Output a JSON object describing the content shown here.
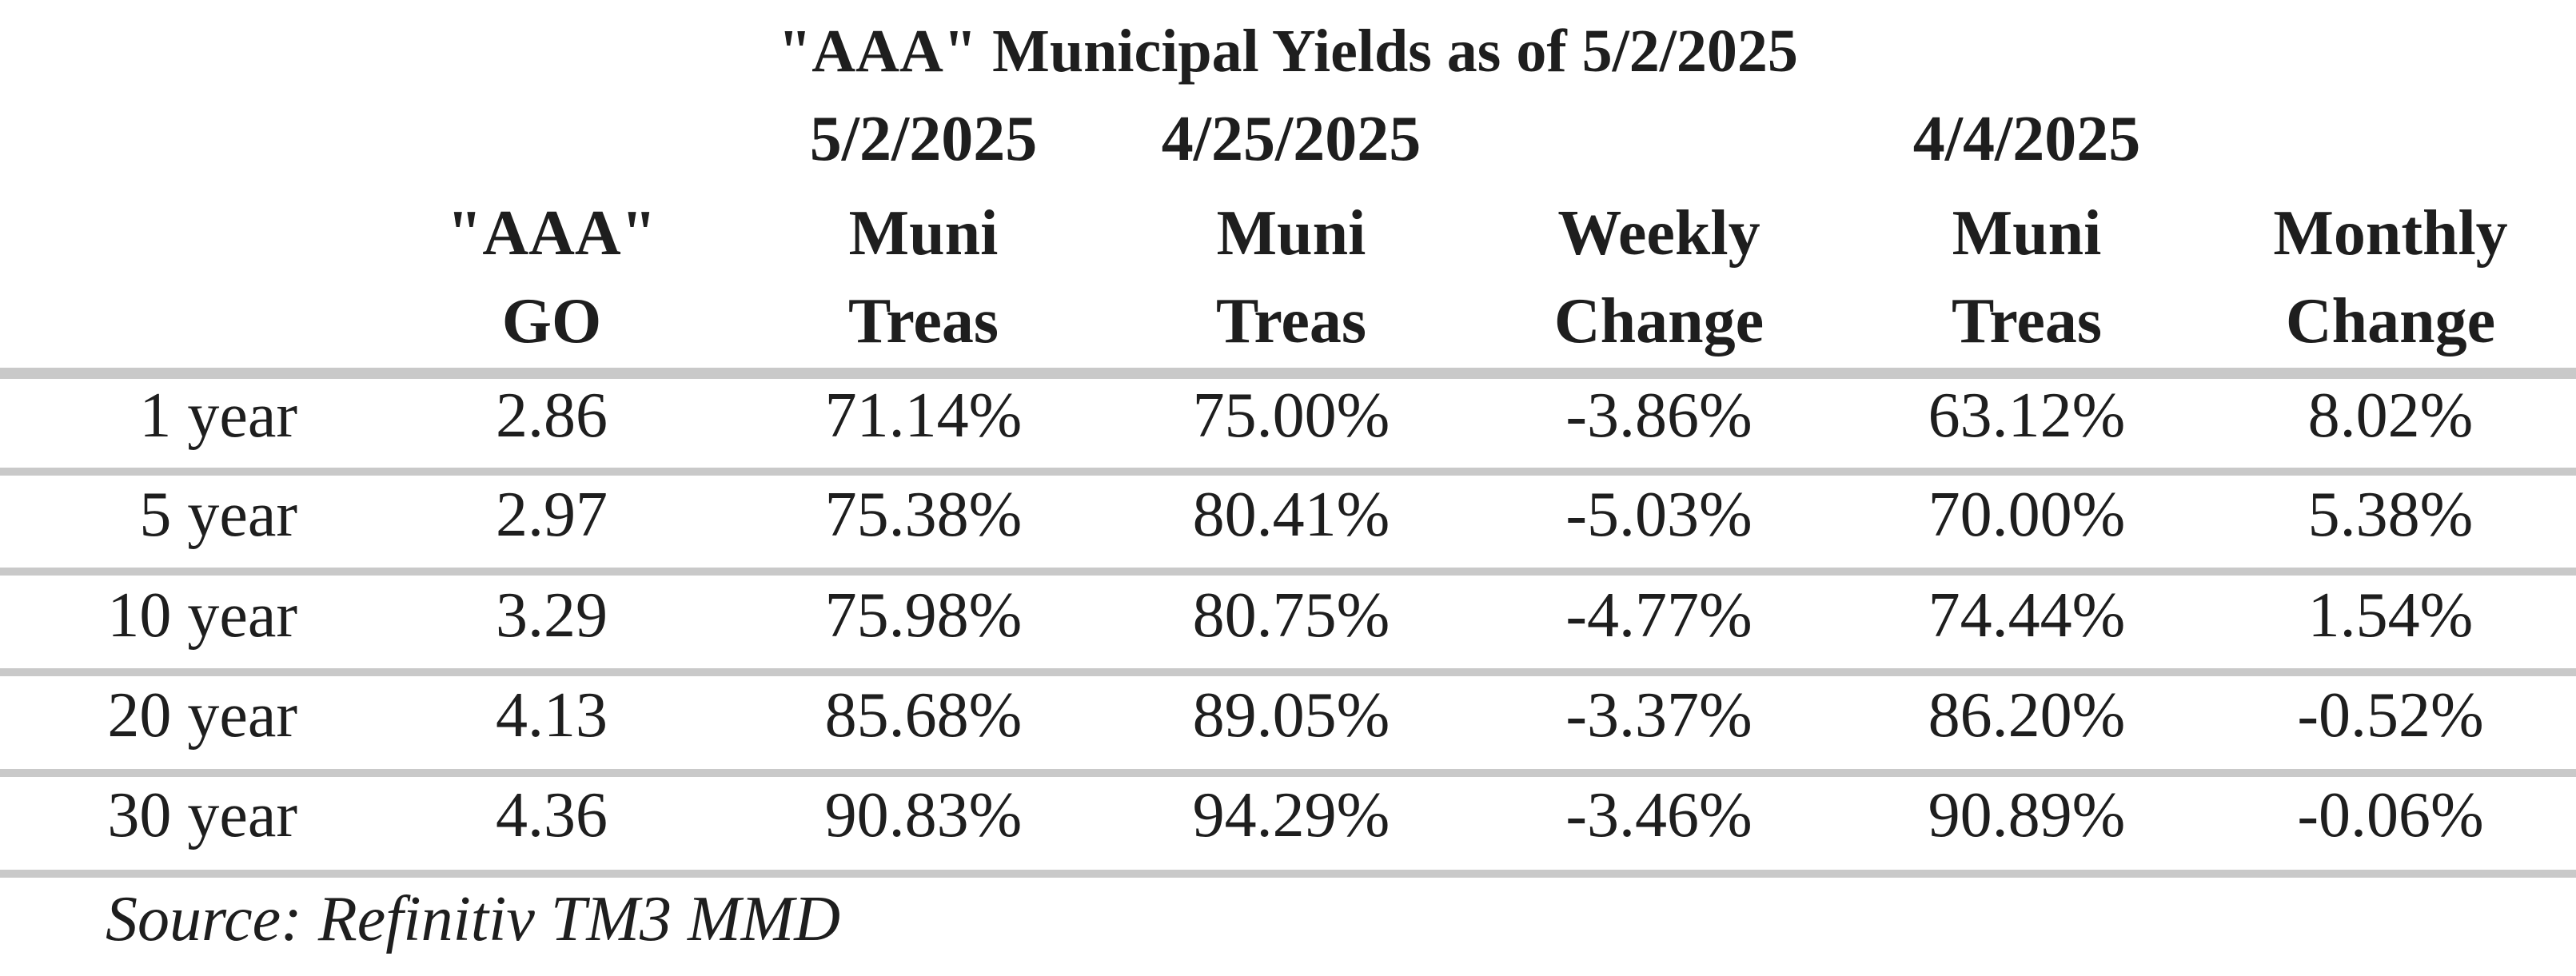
{
  "chart_data": {
    "type": "table",
    "title": "\"AAA\" Municipal Yields as of 5/2/2025",
    "columns": [
      {
        "date": "",
        "line1": "\"AAA\"",
        "line2": "GO"
      },
      {
        "date": "5/2/2025",
        "line1": "Muni",
        "line2": "Treas"
      },
      {
        "date": "4/25/2025",
        "line1": "Muni",
        "line2": "Treas"
      },
      {
        "date": "",
        "line1": "Weekly",
        "line2": "Change"
      },
      {
        "date": "4/4/2025",
        "line1": "Muni",
        "line2": "Treas"
      },
      {
        "date": "",
        "line1": "Monthly",
        "line2": "Change"
      }
    ],
    "rows": [
      {
        "label": "1 year",
        "values": [
          "2.86",
          "71.14%",
          "75.00%",
          "-3.86%",
          "63.12%",
          "8.02%"
        ]
      },
      {
        "label": "5 year",
        "values": [
          "2.97",
          "75.38%",
          "80.41%",
          "-5.03%",
          "70.00%",
          "5.38%"
        ]
      },
      {
        "label": "10 year",
        "values": [
          "3.29",
          "75.98%",
          "80.75%",
          "-4.77%",
          "74.44%",
          "1.54%"
        ]
      },
      {
        "label": "20 year",
        "values": [
          "4.13",
          "85.68%",
          "89.05%",
          "-3.37%",
          "86.20%",
          "-0.52%"
        ]
      },
      {
        "label": "30 year",
        "values": [
          "4.36",
          "90.83%",
          "94.29%",
          "-3.46%",
          "90.89%",
          "-0.06%"
        ]
      }
    ],
    "source": "Source: Refinitiv TM3 MMD"
  }
}
